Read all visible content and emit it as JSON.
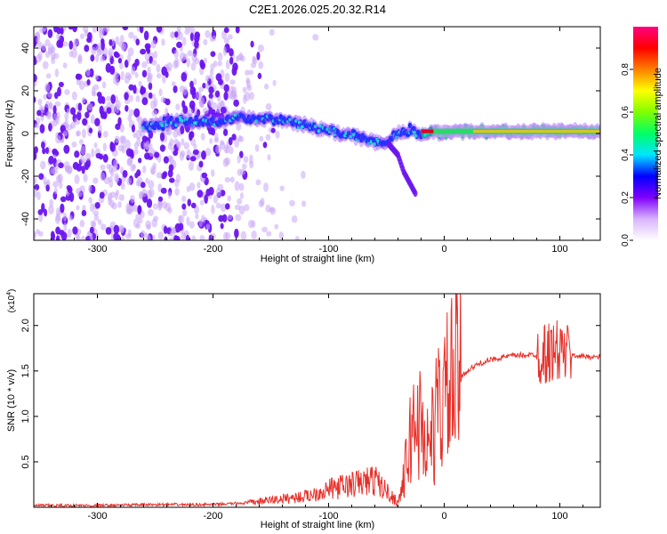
{
  "title": "C2E1.2026.025.20.32.R14",
  "chart_data": [
    {
      "type": "heatmap",
      "title": "C2E1.2026.025.20.32.R14",
      "xlabel": "Height of straight line (km)",
      "ylabel": "Frequency (Hz)",
      "xlim": [
        -355,
        135
      ],
      "ylim": [
        -50,
        50
      ],
      "x_ticks": [
        -300,
        -200,
        -100,
        0,
        100
      ],
      "x_tick_labels": [
        "-300",
        "-200",
        "-100",
        "0",
        "100"
      ],
      "y_ticks": [
        -40,
        -20,
        0,
        20,
        40
      ],
      "y_tick_labels": [
        "-40",
        "-20",
        "0",
        "20",
        "40"
      ],
      "colorbar": {
        "label": "Normalized spectral amplitude",
        "range": [
          0,
          1
        ],
        "ticks": [
          0.0,
          0.2,
          0.4,
          0.6,
          0.8
        ],
        "tick_labels": [
          "0.0",
          "0.2",
          "0.4",
          "0.6",
          "0.8"
        ],
        "colors": [
          "#ffffff",
          "#d9b3ff",
          "#8000ff",
          "#0000ff",
          "#00e5ff",
          "#00ff66",
          "#80ff00",
          "#ffff00",
          "#ff8000",
          "#ff0000",
          "#ff007f"
        ]
      },
      "ridge": {
        "x": [
          -260,
          -240,
          -220,
          -200,
          -180,
          -160,
          -140,
          -120,
          -100,
          -80,
          -60,
          -50,
          -40,
          -30,
          -20,
          -10,
          0,
          20,
          50,
          80,
          100,
          135
        ],
        "y": [
          3,
          5,
          6,
          5,
          7,
          7,
          6,
          4,
          1,
          -1,
          -4,
          -4,
          0,
          2,
          0,
          1,
          0,
          1,
          1,
          1,
          1,
          1
        ]
      },
      "branch": {
        "x": [
          -48,
          -40,
          -35,
          -30,
          -25
        ],
        "y": [
          -5,
          -10,
          -18,
          -23,
          -28
        ]
      },
      "noise_region_x": [
        -355,
        -150
      ]
    },
    {
      "type": "line",
      "xlabel": "Height of straight line (km)",
      "ylabel": "SNR (10 * v/v)",
      "yscale_label": "(x10",
      "yscale_exp": "4",
      "yscale_close": ")",
      "xlim": [
        -355,
        135
      ],
      "ylim": [
        0,
        2.35
      ],
      "x_ticks": [
        -300,
        -200,
        -100,
        0,
        100
      ],
      "x_tick_labels": [
        "-300",
        "-200",
        "-100",
        "0",
        "100"
      ],
      "y_ticks": [
        0.5,
        1.0,
        1.5,
        2.0
      ],
      "y_tick_labels": [
        "0.5",
        "1.0",
        "1.5",
        "2.0"
      ],
      "line_color": "#e8302a",
      "series": [
        {
          "name": "SNR",
          "x": [
            -355,
            -300,
            -250,
            -200,
            -170,
            -150,
            -120,
            -100,
            -80,
            -60,
            -50,
            -40,
            -35,
            -30,
            -25,
            -20,
            -15,
            -10,
            -5,
            0,
            5,
            10,
            20,
            30,
            40,
            50,
            60,
            80,
            100,
            110,
            135
          ],
          "y": [
            0.02,
            0.02,
            0.03,
            0.03,
            0.05,
            0.08,
            0.12,
            0.2,
            0.25,
            0.3,
            0.18,
            0.05,
            0.3,
            0.7,
            1.0,
            0.9,
            0.7,
            0.8,
            1.1,
            1.2,
            1.3,
            1.4,
            1.5,
            1.58,
            1.62,
            1.65,
            1.67,
            1.68,
            1.72,
            1.67,
            1.65
          ]
        }
      ]
    }
  ]
}
